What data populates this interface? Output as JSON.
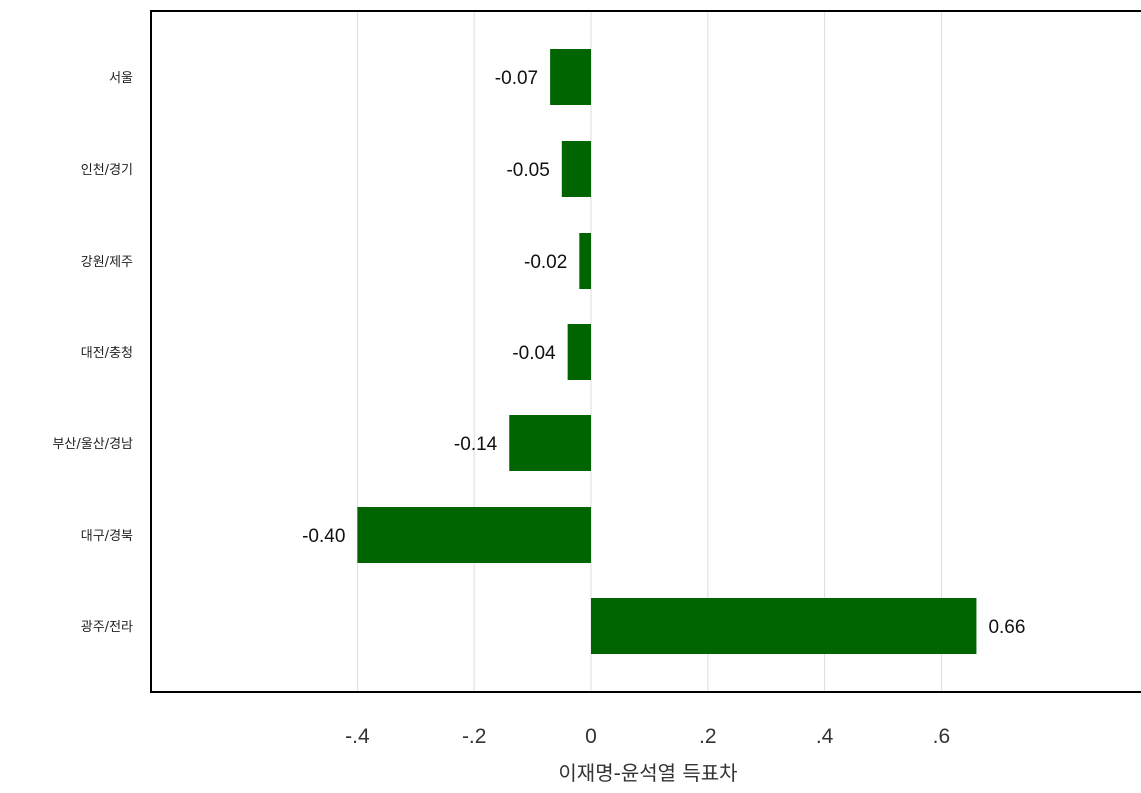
{
  "chart_data": {
    "type": "bar",
    "orientation": "horizontal",
    "categories": [
      "서울",
      "인천/경기",
      "강원/제주",
      "대전/충청",
      "부산/울산/경남",
      "대구/경북",
      "광주/전라"
    ],
    "values": [
      -0.07,
      -0.05,
      -0.02,
      -0.04,
      -0.14,
      -0.4,
      0.66
    ],
    "value_labels": [
      "-0.07",
      "-0.05",
      "-0.02",
      "-0.04",
      "-0.14",
      "-0.40",
      "0.66"
    ],
    "xlabel": "이재명-윤석열 득표차",
    "ylabel": "",
    "title": "",
    "xticks": [
      -0.4,
      -0.2,
      0,
      0.2,
      0.4,
      0.6
    ],
    "xtick_labels": [
      "-.4",
      "-.2",
      "0",
      ".2",
      ".4",
      ".6"
    ],
    "xlim": [
      -0.75,
      0.95
    ],
    "grid": "vertical",
    "bar_color": "#006400"
  }
}
